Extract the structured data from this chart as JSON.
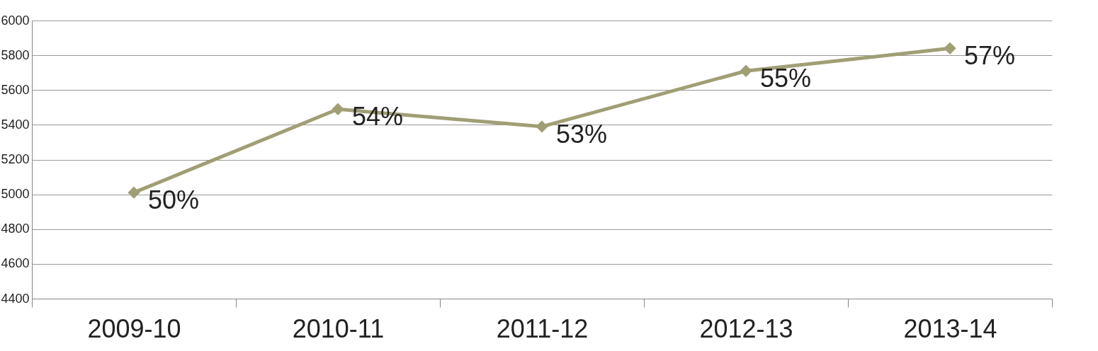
{
  "chart_data": {
    "type": "line",
    "categories": [
      "2009-10",
      "2010-11",
      "2011-12",
      "2012-13",
      "2013-14"
    ],
    "series": [
      {
        "color": "#a09e74",
        "values": [
          5010,
          5490,
          5390,
          5710,
          5840
        ]
      }
    ],
    "annotations": [
      {
        "text": "50%",
        "x": "2009-10",
        "y": 5010
      },
      {
        "text": "54%",
        "x": "2010-11",
        "y": 5490
      },
      {
        "text": "53%",
        "x": "2011-12",
        "y": 5390
      },
      {
        "text": "55%",
        "x": "2012-13",
        "y": 5710
      },
      {
        "text": "57%",
        "x": "2013-14",
        "y": 5840
      }
    ],
    "ylim": [
      4400,
      6000
    ],
    "yticks": [
      4400,
      4600,
      4800,
      5000,
      5200,
      5400,
      5600,
      5800,
      6000
    ],
    "grid": "y",
    "marker": "diamond",
    "line_style": "solid"
  }
}
